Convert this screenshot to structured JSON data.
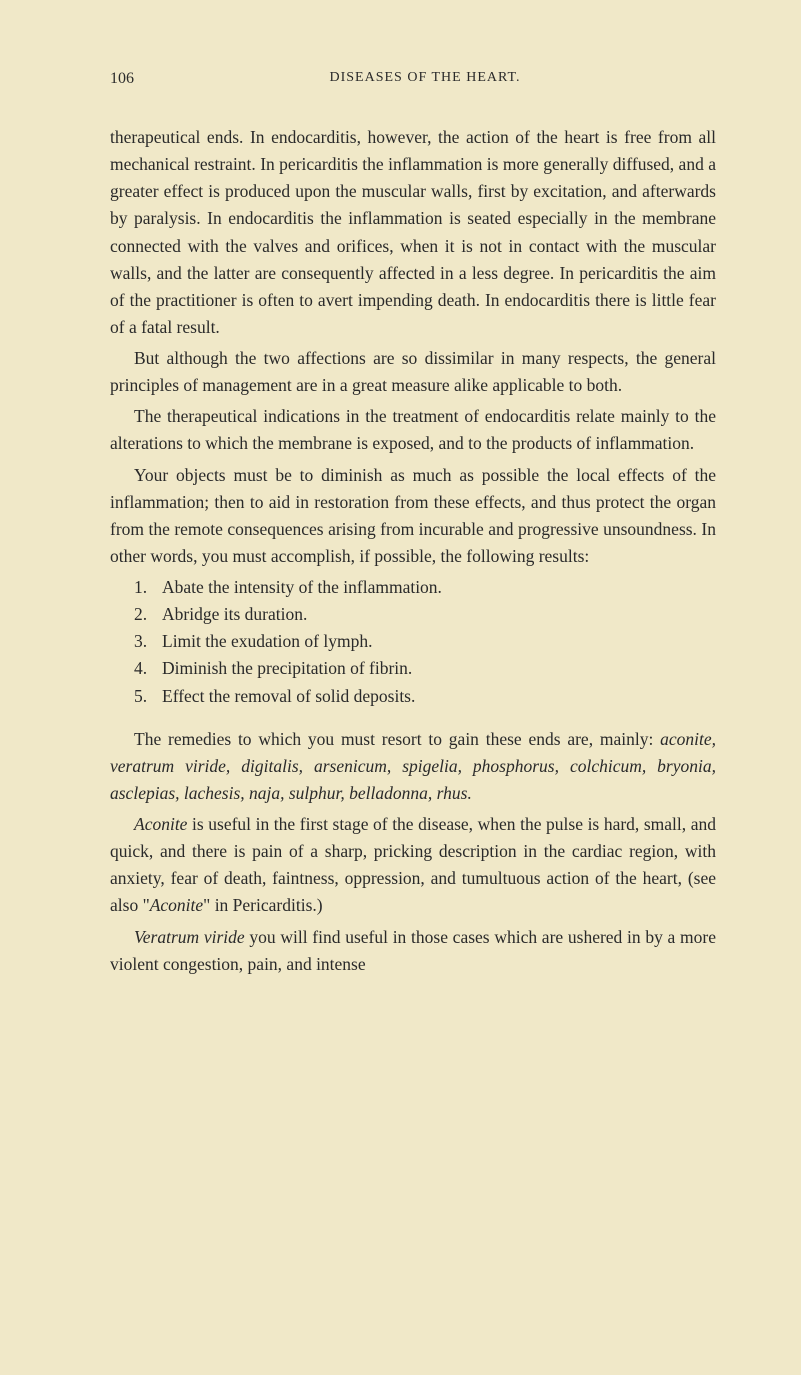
{
  "page": {
    "number": "106",
    "runningTitle": "DISEASES OF THE HEART."
  },
  "paragraphs": {
    "p1": "therapeutical ends. In endocarditis, however, the action of the heart is free from all mechanical restraint. In pericarditis the inflammation is more generally diffused, and a greater effect is produced upon the muscular walls, first by excitation, and afterwards by paralysis. In endocarditis the inflammation is seated especially in the membrane connected with the valves and orifices, when it is not in contact with the muscular walls, and the latter are consequently affected in a less degree. In pericarditis the aim of the practitioner is often to avert impending death. In endocarditis there is little fear of a fatal result.",
    "p2": "But although the two affections are so dissimilar in many respects, the general principles of management are in a great measure alike applicable to both.",
    "p3": "The therapeutical indications in the treatment of endocarditis relate mainly to the alterations to which the membrane is exposed, and to the products of inflammation.",
    "p4": "Your objects must be to diminish as much as possible the local effects of the inflammation; then to aid in restoration from these effects, and thus protect the organ from the remote consequences arising from incurable and progressive unsoundness. In other words, you must accomplish, if possible, the following results:",
    "p5_pre": "The remedies to which you must resort to gain these ends are, mainly: ",
    "p5_italic": "aconite, veratrum viride, digitalis, arsenicum, spigelia, phosphorus, colchicum, bryonia, asclepias, lachesis, naja, sulphur, belladonna, rhus.",
    "p6_i1": "Aconite",
    "p6_t1": " is useful in the first stage of the disease, when the pulse is hard, small, and quick, and there is pain of a sharp, pricking description in the cardiac region, with anxiety, fear of death, faintness, oppression, and tumultuous action of the heart, (see also \"",
    "p6_i2": "Aconite",
    "p6_t2": "\" in Pericarditis.)",
    "p7_i1": "Veratrum viride",
    "p7_t1": " you will find useful in those cases which are ushered in by a more violent congestion, pain, and intense"
  },
  "list": {
    "items": [
      {
        "num": "1.",
        "text": "Abate the intensity of the inflammation."
      },
      {
        "num": "2.",
        "text": "Abridge its duration."
      },
      {
        "num": "3.",
        "text": "Limit the exudation of lymph."
      },
      {
        "num": "4.",
        "text": "Diminish the precipitation of fibrin."
      },
      {
        "num": "5.",
        "text": "Effect the removal of solid deposits."
      }
    ]
  },
  "colors": {
    "background": "#f0e8c8",
    "text": "#2a2a2a"
  },
  "typography": {
    "bodyFontSize": 17.5,
    "headerFontSize": 16,
    "lineHeight": 1.55,
    "fontFamily": "Georgia, Times New Roman, serif"
  }
}
